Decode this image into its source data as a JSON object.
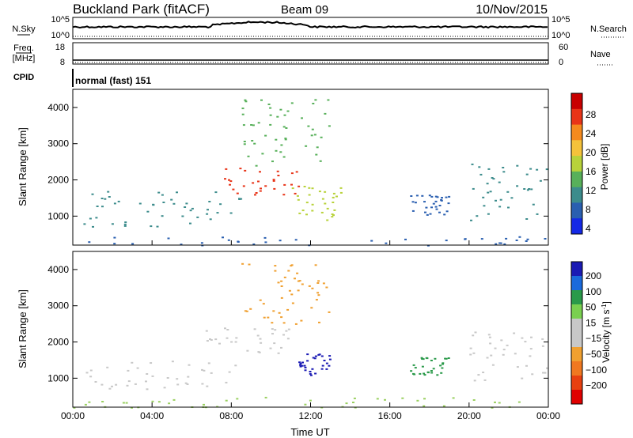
{
  "header": {
    "station": "Buckland Park (fitACF)",
    "beam": "Beam 09",
    "date": "10/Nov/2015"
  },
  "strips": {
    "nsky_label": "N.Sky",
    "nsky_top": "10^5",
    "nsky_bottom": "10^0",
    "nsearch_label": "N.Search",
    "nsearch_top": "10^5",
    "nsearch_bottom": "10^0",
    "freq_label_line1": "Freq.",
    "freq_label_line2": "[MHz]",
    "freq_top": "18",
    "freq_bottom": "8",
    "nave_label": "Nave",
    "nave_top": "60",
    "nave_bottom": "0",
    "cpid_label": "CPID",
    "cpid_value": "normal (fast) 151"
  },
  "chart_data": [
    {
      "type": "heatmap",
      "panel": "power",
      "ylabel": "Slant Range [km]",
      "ylim": [
        200,
        4500
      ],
      "yticks": [
        "1000",
        "2000",
        "3000",
        "4000"
      ],
      "xticks": [
        "00:00",
        "04:00",
        "08:00",
        "12:00",
        "16:00",
        "20:00",
        "00:00"
      ],
      "colorbar": {
        "label": "Power [dB]",
        "ticks": [
          "4",
          "8",
          "12",
          "16",
          "20",
          "24",
          "28"
        ],
        "colors": [
          "#1428e6",
          "#2a5fb0",
          "#3c8c8c",
          "#58b05a",
          "#b8d23a",
          "#f5c23a",
          "#f58a1e",
          "#e83418",
          "#c80000"
        ]
      },
      "scatter_regions": [
        {
          "name": "near-range",
          "t0": 0.0,
          "t1": 24.0,
          "r0": 200,
          "r1": 450,
          "color": "#2a5fb0"
        },
        {
          "name": "arc-band",
          "t0": 0.5,
          "t1": 8.5,
          "r0": 700,
          "r1": 1700,
          "color": "#3c8c8c"
        },
        {
          "name": "patch-core",
          "t0": 7.5,
          "t1": 11.5,
          "r0": 1600,
          "r1": 2400,
          "color": "#e83418"
        },
        {
          "name": "patch-upper",
          "t0": 8.5,
          "t1": 13.0,
          "r0": 2400,
          "r1": 4300,
          "color": "#58b05a"
        },
        {
          "name": "second-patch",
          "t0": 11.0,
          "t1": 13.5,
          "r0": 900,
          "r1": 1900,
          "color": "#b8d23a"
        },
        {
          "name": "mid-cluster",
          "t0": 17.0,
          "t1": 19.0,
          "r0": 1000,
          "r1": 1600,
          "color": "#2a5fb0"
        },
        {
          "name": "evening-arc",
          "t0": 20.0,
          "t1": 24.0,
          "r0": 900,
          "r1": 2500,
          "color": "#3c8c8c"
        }
      ]
    },
    {
      "type": "heatmap",
      "panel": "velocity",
      "ylabel": "Slant Range [km]",
      "ylim": [
        200,
        4500
      ],
      "yticks": [
        "1000",
        "2000",
        "3000",
        "4000"
      ],
      "xticks": [
        "00:00",
        "04:00",
        "08:00",
        "12:00",
        "16:00",
        "20:00",
        "00:00"
      ],
      "xlabel": "Time UT",
      "colorbar": {
        "label_main": "Velocity [m s",
        "label_sup": "-1",
        "label_close": "]",
        "ticks": [
          "200",
          "100",
          "50",
          "15",
          "−15",
          "−50",
          "−100",
          "−200"
        ],
        "colors": [
          "#1a1ab4",
          "#1a6adc",
          "#2a9a4a",
          "#7ad050",
          "#c8c8c8",
          "#c8c8c8",
          "#f0a030",
          "#f07820",
          "#e84010",
          "#e00000"
        ]
      },
      "scatter_regions": [
        {
          "name": "near-range",
          "t0": 0.0,
          "t1": 24.0,
          "r0": 200,
          "r1": 500,
          "color": "#9ad060"
        },
        {
          "name": "arc-band",
          "t0": 0.5,
          "t1": 8.5,
          "r0": 700,
          "r1": 1500,
          "color": "#c8c8c8"
        },
        {
          "name": "patch-core",
          "t0": 6.5,
          "t1": 11.0,
          "r0": 1700,
          "r1": 2400,
          "color": "#c8c8c8"
        },
        {
          "name": "patch-upper",
          "t0": 8.5,
          "t1": 13.0,
          "r0": 2500,
          "r1": 4300,
          "color": "#f0a030"
        },
        {
          "name": "blue-patch",
          "t0": 11.3,
          "t1": 13.0,
          "r0": 1100,
          "r1": 1700,
          "color": "#1a1ab4"
        },
        {
          "name": "mid-cluster",
          "t0": 17.0,
          "t1": 19.0,
          "r0": 1100,
          "r1": 1600,
          "color": "#2a9a4a"
        },
        {
          "name": "evening-arc",
          "t0": 20.0,
          "t1": 24.0,
          "r0": 900,
          "r1": 2400,
          "color": "#c8c8c8"
        }
      ]
    }
  ]
}
